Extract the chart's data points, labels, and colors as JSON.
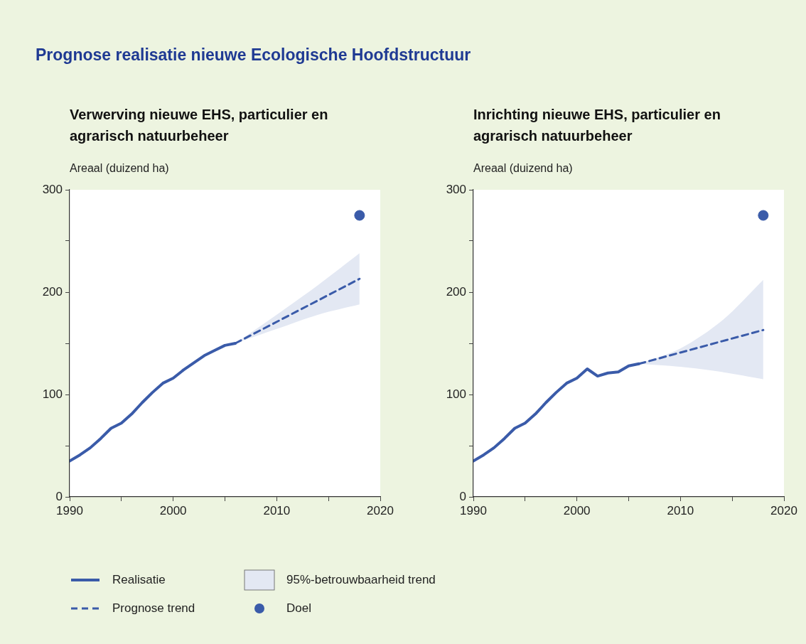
{
  "chart_data": [
    {
      "type": "line",
      "title": "Prognose realisatie nieuwe Ecologische Hoofdstructuur",
      "subtitle": "Verwerving nieuwe EHS, particulier en agrarisch natuurbeheer",
      "ylabel": "Areaal (duizend ha)",
      "annotations": [
        "95%-betrouwbaarheid trend"
      ],
      "xlim": [
        1990,
        2020
      ],
      "xticks": [
        1990,
        {
          "value": 1995,
          "label": null
        },
        2000,
        {
          "value": 2005,
          "label": null
        },
        2010,
        {
          "value": 2015,
          "label": null
        },
        2020
      ],
      "ylim": [
        0,
        300
      ],
      "yticks": [
        0,
        {
          "value": 50,
          "label": null
        },
        100,
        {
          "value": 150,
          "label": null
        },
        200,
        {
          "value": 250,
          "label": null
        },
        300
      ],
      "grid": false,
      "legend": "bottom",
      "series": [
        {
          "name": "Realisatie",
          "color": "#3a5ba9",
          "line_style": "solid",
          "marker": "none",
          "x": [
            1990,
            1991,
            1992,
            1993,
            1994,
            1995,
            1996,
            1997,
            1998,
            1999,
            2000,
            2001,
            2002,
            2003,
            2004,
            2005,
            2006
          ],
          "values": [
            35,
            41,
            48,
            57,
            67,
            72,
            81,
            92,
            102,
            111,
            116,
            124,
            131,
            138,
            143,
            148,
            150
          ]
        },
        {
          "name": "Prognose trend",
          "color": "#3a5ba9",
          "line_style": "dashed",
          "marker": "none",
          "x": [
            2006,
            2010,
            2014,
            2018
          ],
          "values": [
            150,
            171,
            192,
            213
          ],
          "lower": [
            150,
            164,
            178,
            188
          ],
          "upper": [
            150,
            178,
            207,
            238
          ]
        },
        {
          "name": "Doel",
          "type": "scatter",
          "color": "#3a5ba9",
          "marker": "circle",
          "x": [
            2018
          ],
          "values": [
            275
          ]
        }
      ]
    },
    {
      "type": "line",
      "subtitle": "Inrichting nieuwe EHS, particulier en agrarisch natuurbeheer",
      "ylabel": "Areaal (duizend ha)",
      "xlim": [
        1990,
        2020
      ],
      "xticks": [
        1990,
        {
          "value": 1995,
          "label": null
        },
        2000,
        {
          "value": 2005,
          "label": null
        },
        2010,
        {
          "value": 2015,
          "label": null
        },
        2020
      ],
      "ylim": [
        0,
        300
      ],
      "yticks": [
        0,
        {
          "value": 50,
          "label": null
        },
        100,
        {
          "value": 150,
          "label": null
        },
        200,
        {
          "value": 250,
          "label": null
        },
        300
      ],
      "grid": false,
      "series": [
        {
          "color": "#3a5ba9",
          "line_style": "solid",
          "marker": "none",
          "x": [
            1990,
            1991,
            1992,
            1993,
            1994,
            1995,
            1996,
            1997,
            1998,
            1999,
            2000,
            2001,
            2002,
            2003,
            2004,
            2005,
            2006
          ],
          "values": [
            35,
            41,
            48,
            57,
            67,
            72,
            81,
            92,
            102,
            111,
            116,
            125,
            118,
            121,
            122,
            128,
            130
          ]
        },
        {
          "color": "#3a5ba9",
          "line_style": "dashed",
          "marker": "none",
          "x": [
            2006,
            2010,
            2014,
            2018
          ],
          "values": [
            130,
            141,
            152,
            163
          ],
          "lower": [
            130,
            127,
            122,
            115
          ],
          "upper": [
            130,
            145,
            172,
            212
          ]
        },
        {
          "type": "scatter",
          "color": "#3a5ba9",
          "marker": "circle",
          "x": [
            2018
          ],
          "values": [
            275
          ]
        }
      ]
    }
  ]
}
